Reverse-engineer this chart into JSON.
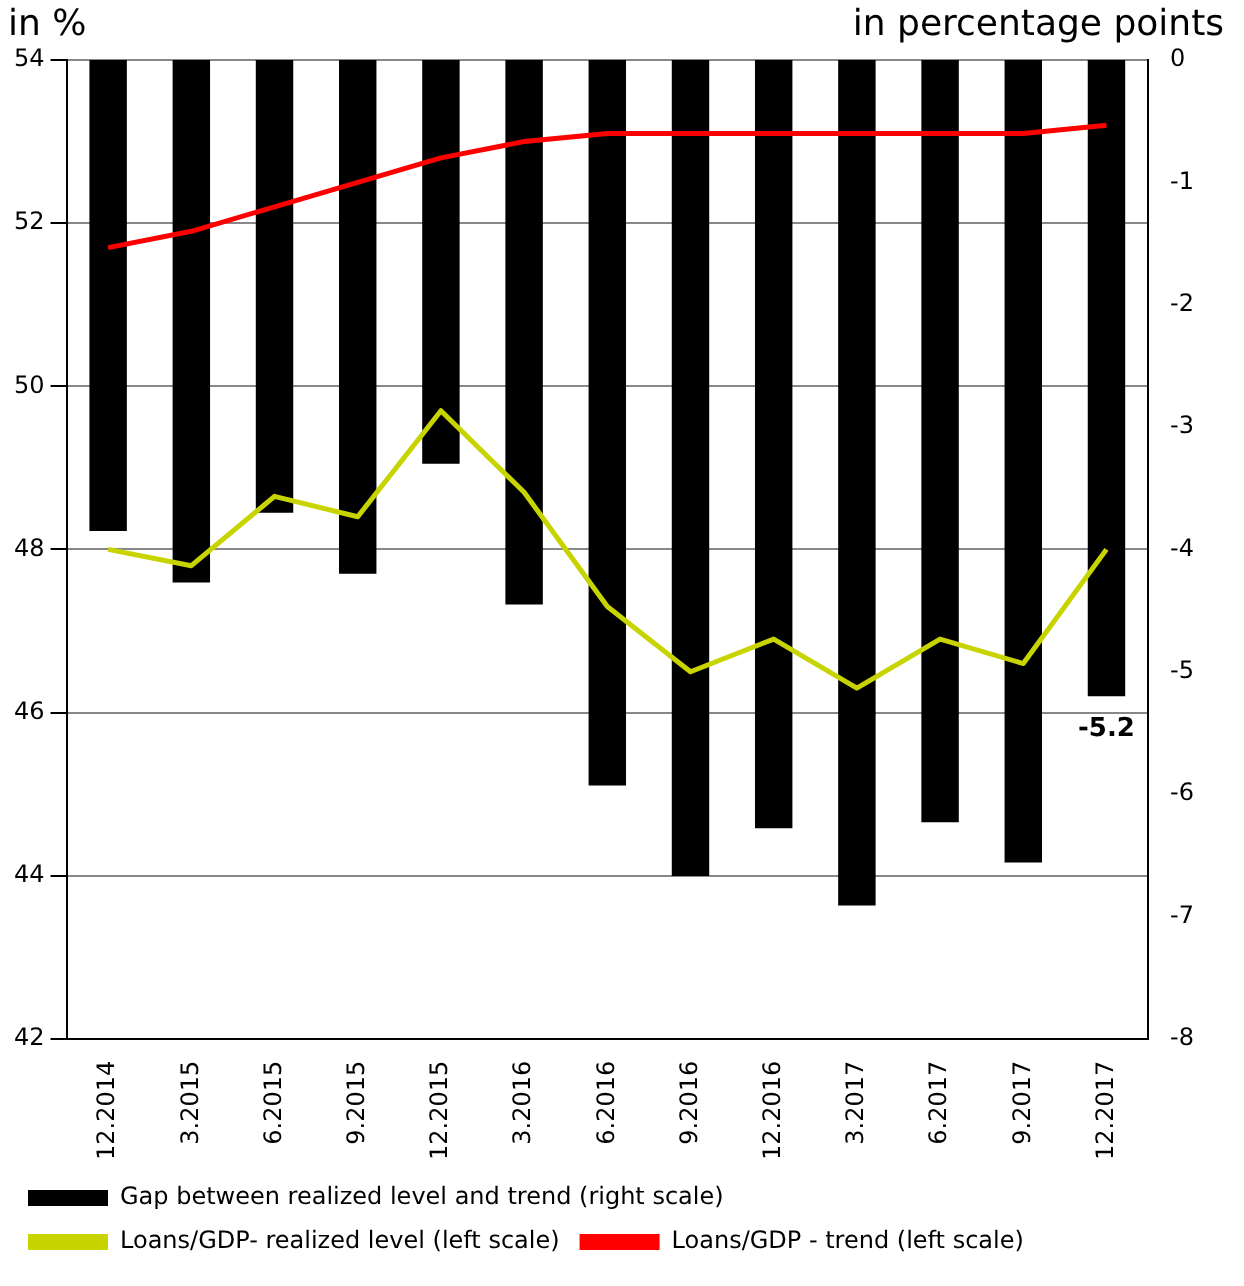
{
  "chart_data": {
    "type": "bar",
    "ylabel": "in %",
    "y2label": "in percentage points",
    "categories": [
      "12.2014",
      "3.2015",
      "6.2015",
      "9.2015",
      "12.2015",
      "3.2016",
      "6.2016",
      "9.2016",
      "12.2016",
      "3.2017",
      "6.2017",
      "9.2017",
      "12.2017"
    ],
    "series": [
      {
        "name": "Gap between realized level and trend (right scale)",
        "axis": "y2",
        "color": "#000000",
        "values": [
          -3.85,
          -4.27,
          -3.7,
          -4.2,
          -3.3,
          -4.45,
          -5.93,
          -6.67,
          -6.28,
          -6.91,
          -6.23,
          -6.56,
          -5.2
        ],
        "value_labels": [
          null,
          null,
          null,
          null,
          null,
          null,
          null,
          null,
          null,
          null,
          null,
          null,
          "-5.2"
        ]
      },
      {
        "name": "Loans/GDP- realized level (left scale)",
        "type": "line",
        "axis": "y",
        "color": "#c8d400",
        "values": [
          48.0,
          47.8,
          48.65,
          48.4,
          49.7,
          48.7,
          47.3,
          46.5,
          46.9,
          46.3,
          46.9,
          46.6,
          48.0
        ]
      },
      {
        "name": "Loans/GDP - trend (left scale)",
        "type": "line",
        "axis": "y",
        "color": "#ff0000",
        "values": [
          51.7,
          51.9,
          52.2,
          52.5,
          52.8,
          53.0,
          53.1,
          53.1,
          53.1,
          53.1,
          53.1,
          53.1,
          53.2
        ]
      }
    ],
    "ylim": [
      42,
      54
    ],
    "yticks": [
      42,
      44,
      46,
      48,
      50,
      52,
      54
    ],
    "y2lim": [
      -8,
      0
    ],
    "y2ticks": [
      -8,
      -7,
      -6,
      -5,
      -4,
      -3,
      -2,
      -1,
      0
    ],
    "grid": "y",
    "legend": "bottom",
    "marker": "none",
    "line_style": "solid"
  }
}
